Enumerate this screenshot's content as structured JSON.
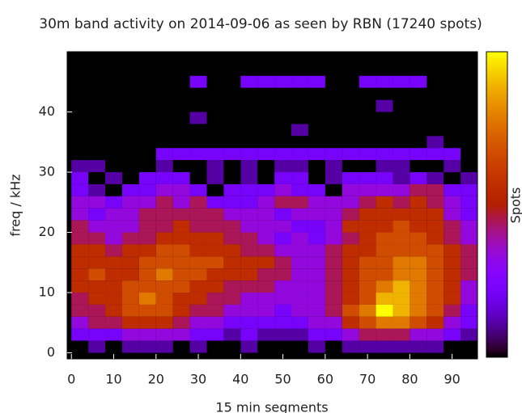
{
  "chart_data": {
    "type": "heatmap",
    "title": "30m band activity on 2014-09-06 as seen by RBN (17240 spots)",
    "x_label": "15 min segments",
    "y_label": "freq / kHz",
    "colorbar_label": "Spots",
    "xlim": [
      -1,
      96
    ],
    "ylim": [
      -1,
      50
    ],
    "zlim": [
      0,
      9
    ],
    "xticks": [
      0,
      10,
      20,
      30,
      40,
      50,
      60,
      70,
      80,
      90
    ],
    "yticks": [
      0,
      10,
      20,
      30,
      40
    ],
    "x_edges": [
      0,
      4,
      8,
      12,
      16,
      20,
      24,
      28,
      32,
      36,
      40,
      44,
      48,
      52,
      56,
      60,
      64,
      68,
      72,
      76,
      80,
      84,
      88,
      92,
      96
    ],
    "y_edges": [
      0,
      2,
      4,
      6,
      8,
      10,
      12,
      14,
      16,
      18,
      20,
      22,
      24,
      26,
      28,
      30,
      32,
      34,
      36,
      38,
      40,
      42,
      44,
      46
    ],
    "z": [
      [
        0,
        1,
        0,
        1,
        1,
        1,
        0,
        1,
        0,
        0,
        1,
        0,
        0,
        0,
        1,
        0,
        1,
        1,
        1,
        1,
        1,
        1,
        0,
        0
      ],
      [
        2,
        2,
        2,
        3,
        3,
        3,
        3,
        2,
        2,
        1,
        2,
        1,
        1,
        1,
        2,
        2,
        3,
        4,
        4,
        4,
        3,
        3,
        2,
        1
      ],
      [
        3,
        4,
        4,
        5,
        5,
        5,
        4,
        3,
        3,
        2,
        2,
        2,
        2,
        2,
        3,
        3,
        5,
        6,
        7,
        7,
        6,
        5,
        3,
        2
      ],
      [
        4,
        4,
        5,
        6,
        6,
        6,
        5,
        4,
        4,
        3,
        3,
        3,
        2,
        3,
        3,
        4,
        6,
        7,
        9,
        8,
        7,
        6,
        4,
        2
      ],
      [
        4,
        5,
        5,
        6,
        7,
        6,
        5,
        5,
        4,
        4,
        3,
        3,
        3,
        3,
        3,
        4,
        5,
        6,
        8,
        8,
        7,
        6,
        5,
        3
      ],
      [
        5,
        5,
        5,
        6,
        6,
        6,
        6,
        5,
        5,
        4,
        4,
        4,
        3,
        3,
        3,
        4,
        5,
        6,
        7,
        8,
        7,
        6,
        5,
        3
      ],
      [
        5,
        6,
        5,
        5,
        6,
        7,
        6,
        6,
        5,
        5,
        5,
        4,
        4,
        3,
        3,
        4,
        5,
        6,
        6,
        7,
        7,
        6,
        5,
        4
      ],
      [
        5,
        5,
        5,
        5,
        6,
        6,
        6,
        6,
        6,
        5,
        5,
        5,
        4,
        3,
        3,
        4,
        5,
        6,
        6,
        7,
        7,
        6,
        5,
        4
      ],
      [
        5,
        5,
        4,
        5,
        5,
        6,
        6,
        5,
        5,
        5,
        4,
        4,
        3,
        3,
        3,
        4,
        5,
        5,
        6,
        6,
        6,
        6,
        5,
        4
      ],
      [
        4,
        4,
        3,
        4,
        4,
        5,
        5,
        5,
        5,
        4,
        4,
        3,
        2,
        3,
        2,
        3,
        4,
        5,
        6,
        6,
        6,
        5,
        4,
        3
      ],
      [
        4,
        3,
        3,
        3,
        4,
        4,
        5,
        4,
        4,
        4,
        3,
        3,
        3,
        2,
        2,
        3,
        5,
        5,
        5,
        6,
        5,
        5,
        4,
        3
      ],
      [
        3,
        2,
        3,
        3,
        4,
        4,
        4,
        4,
        4,
        3,
        3,
        3,
        2,
        3,
        3,
        3,
        4,
        5,
        5,
        5,
        5,
        5,
        3,
        2
      ],
      [
        3,
        3,
        2,
        3,
        3,
        4,
        3,
        4,
        2,
        2,
        2,
        3,
        4,
        4,
        3,
        3,
        3,
        4,
        5,
        4,
        5,
        4,
        3,
        2
      ],
      [
        2,
        1,
        0,
        2,
        2,
        3,
        3,
        2,
        0,
        2,
        2,
        2,
        3,
        2,
        2,
        0,
        3,
        3,
        3,
        3,
        4,
        4,
        2,
        2
      ],
      [
        2,
        0,
        1,
        0,
        2,
        2,
        2,
        0,
        1,
        0,
        1,
        0,
        2,
        2,
        0,
        1,
        2,
        2,
        2,
        1,
        2,
        1,
        0,
        1
      ],
      [
        1,
        1,
        0,
        0,
        0,
        1,
        0,
        0,
        1,
        0,
        1,
        0,
        1,
        1,
        0,
        1,
        0,
        0,
        1,
        1,
        0,
        0,
        1,
        0
      ],
      [
        0,
        0,
        0,
        0,
        0,
        2,
        2,
        2,
        2,
        2,
        2,
        2,
        2,
        2,
        2,
        2,
        2,
        2,
        2,
        2,
        2,
        2,
        2,
        0
      ],
      [
        0,
        0,
        0,
        0,
        0,
        0,
        0,
        0,
        0,
        0,
        0,
        0,
        0,
        0,
        0,
        0,
        0,
        0,
        0,
        0,
        0,
        1,
        0,
        0
      ],
      [
        0,
        0,
        0,
        0,
        0,
        0,
        0,
        0,
        0,
        0,
        0,
        0,
        0,
        1,
        0,
        0,
        0,
        0,
        0,
        0,
        0,
        0,
        0,
        0
      ],
      [
        0,
        0,
        0,
        0,
        0,
        0,
        0,
        1,
        0,
        0,
        0,
        0,
        0,
        0,
        0,
        0,
        0,
        0,
        0,
        0,
        0,
        0,
        0,
        0
      ],
      [
        0,
        0,
        0,
        0,
        0,
        0,
        0,
        0,
        0,
        0,
        0,
        0,
        0,
        0,
        0,
        0,
        0,
        0,
        1,
        0,
        0,
        0,
        0,
        0
      ],
      [
        0,
        0,
        0,
        0,
        0,
        0,
        0,
        0,
        0,
        0,
        0,
        0,
        0,
        0,
        0,
        0,
        0,
        0,
        0,
        0,
        0,
        0,
        0,
        0
      ],
      [
        0,
        0,
        0,
        0,
        0,
        0,
        0,
        2,
        0,
        0,
        2,
        2,
        2,
        2,
        2,
        0,
        0,
        2,
        2,
        2,
        2,
        0,
        0,
        0
      ]
    ]
  }
}
